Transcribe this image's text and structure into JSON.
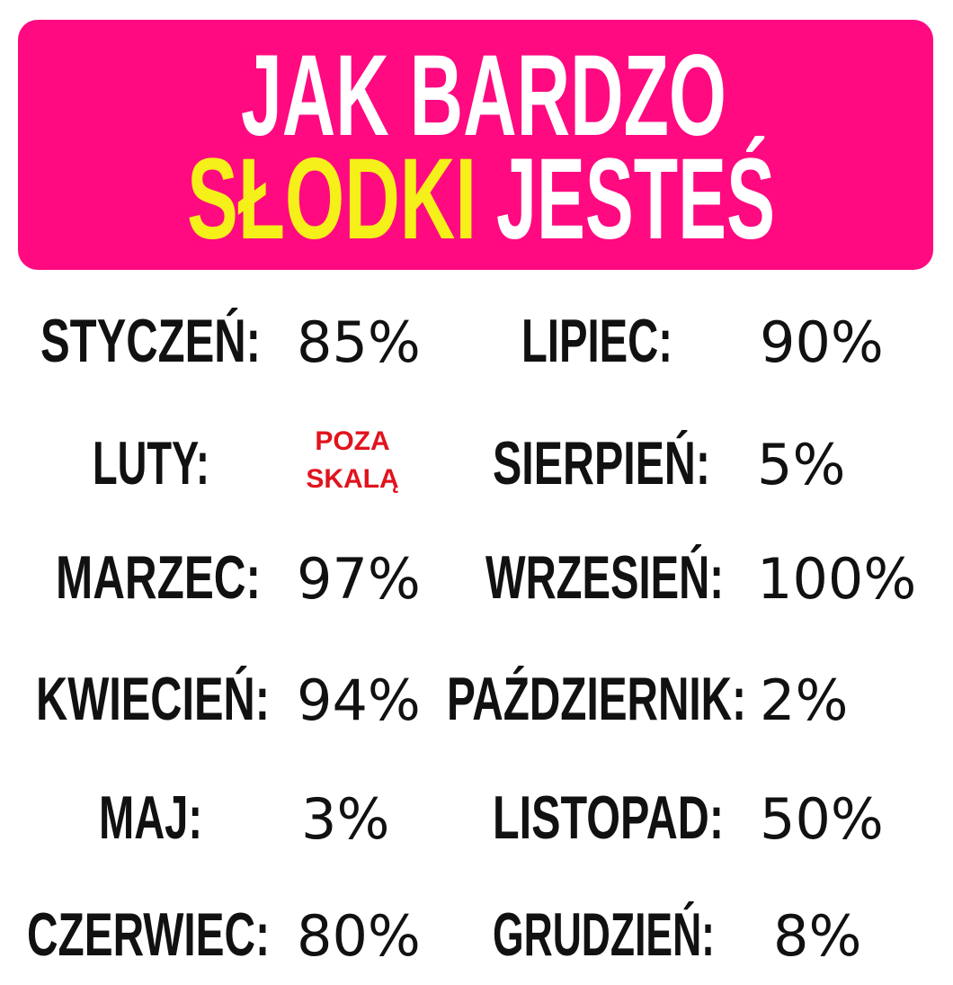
{
  "header": {
    "line1": "JAK BARDZO",
    "highlight": "SŁODKI",
    "rest": "JESTEŚ"
  },
  "months": [
    {
      "label": "STYCZEŃ:",
      "value": "85%"
    },
    {
      "label": "LUTY:",
      "value_lines": [
        "POZA",
        "SKALĄ"
      ]
    },
    {
      "label": "MARZEC:",
      "value": "97%"
    },
    {
      "label": "KWIECIEŃ:",
      "value": "94%"
    },
    {
      "label": "MAJ:",
      "value": "3%"
    },
    {
      "label": "CZERWIEC:",
      "value": "80%"
    },
    {
      "label": "LIPIEC:",
      "value": "90%"
    },
    {
      "label": "SIERPIEŃ:",
      "value": "5%"
    },
    {
      "label": "WRZESIEŃ:",
      "value": "100%"
    },
    {
      "label": "PAŹDZIERNIK:",
      "value": "2%"
    },
    {
      "label": "LISTOPAD:",
      "value": "50%"
    },
    {
      "label": "GRUDZIEŃ:",
      "value": "8%"
    }
  ]
}
